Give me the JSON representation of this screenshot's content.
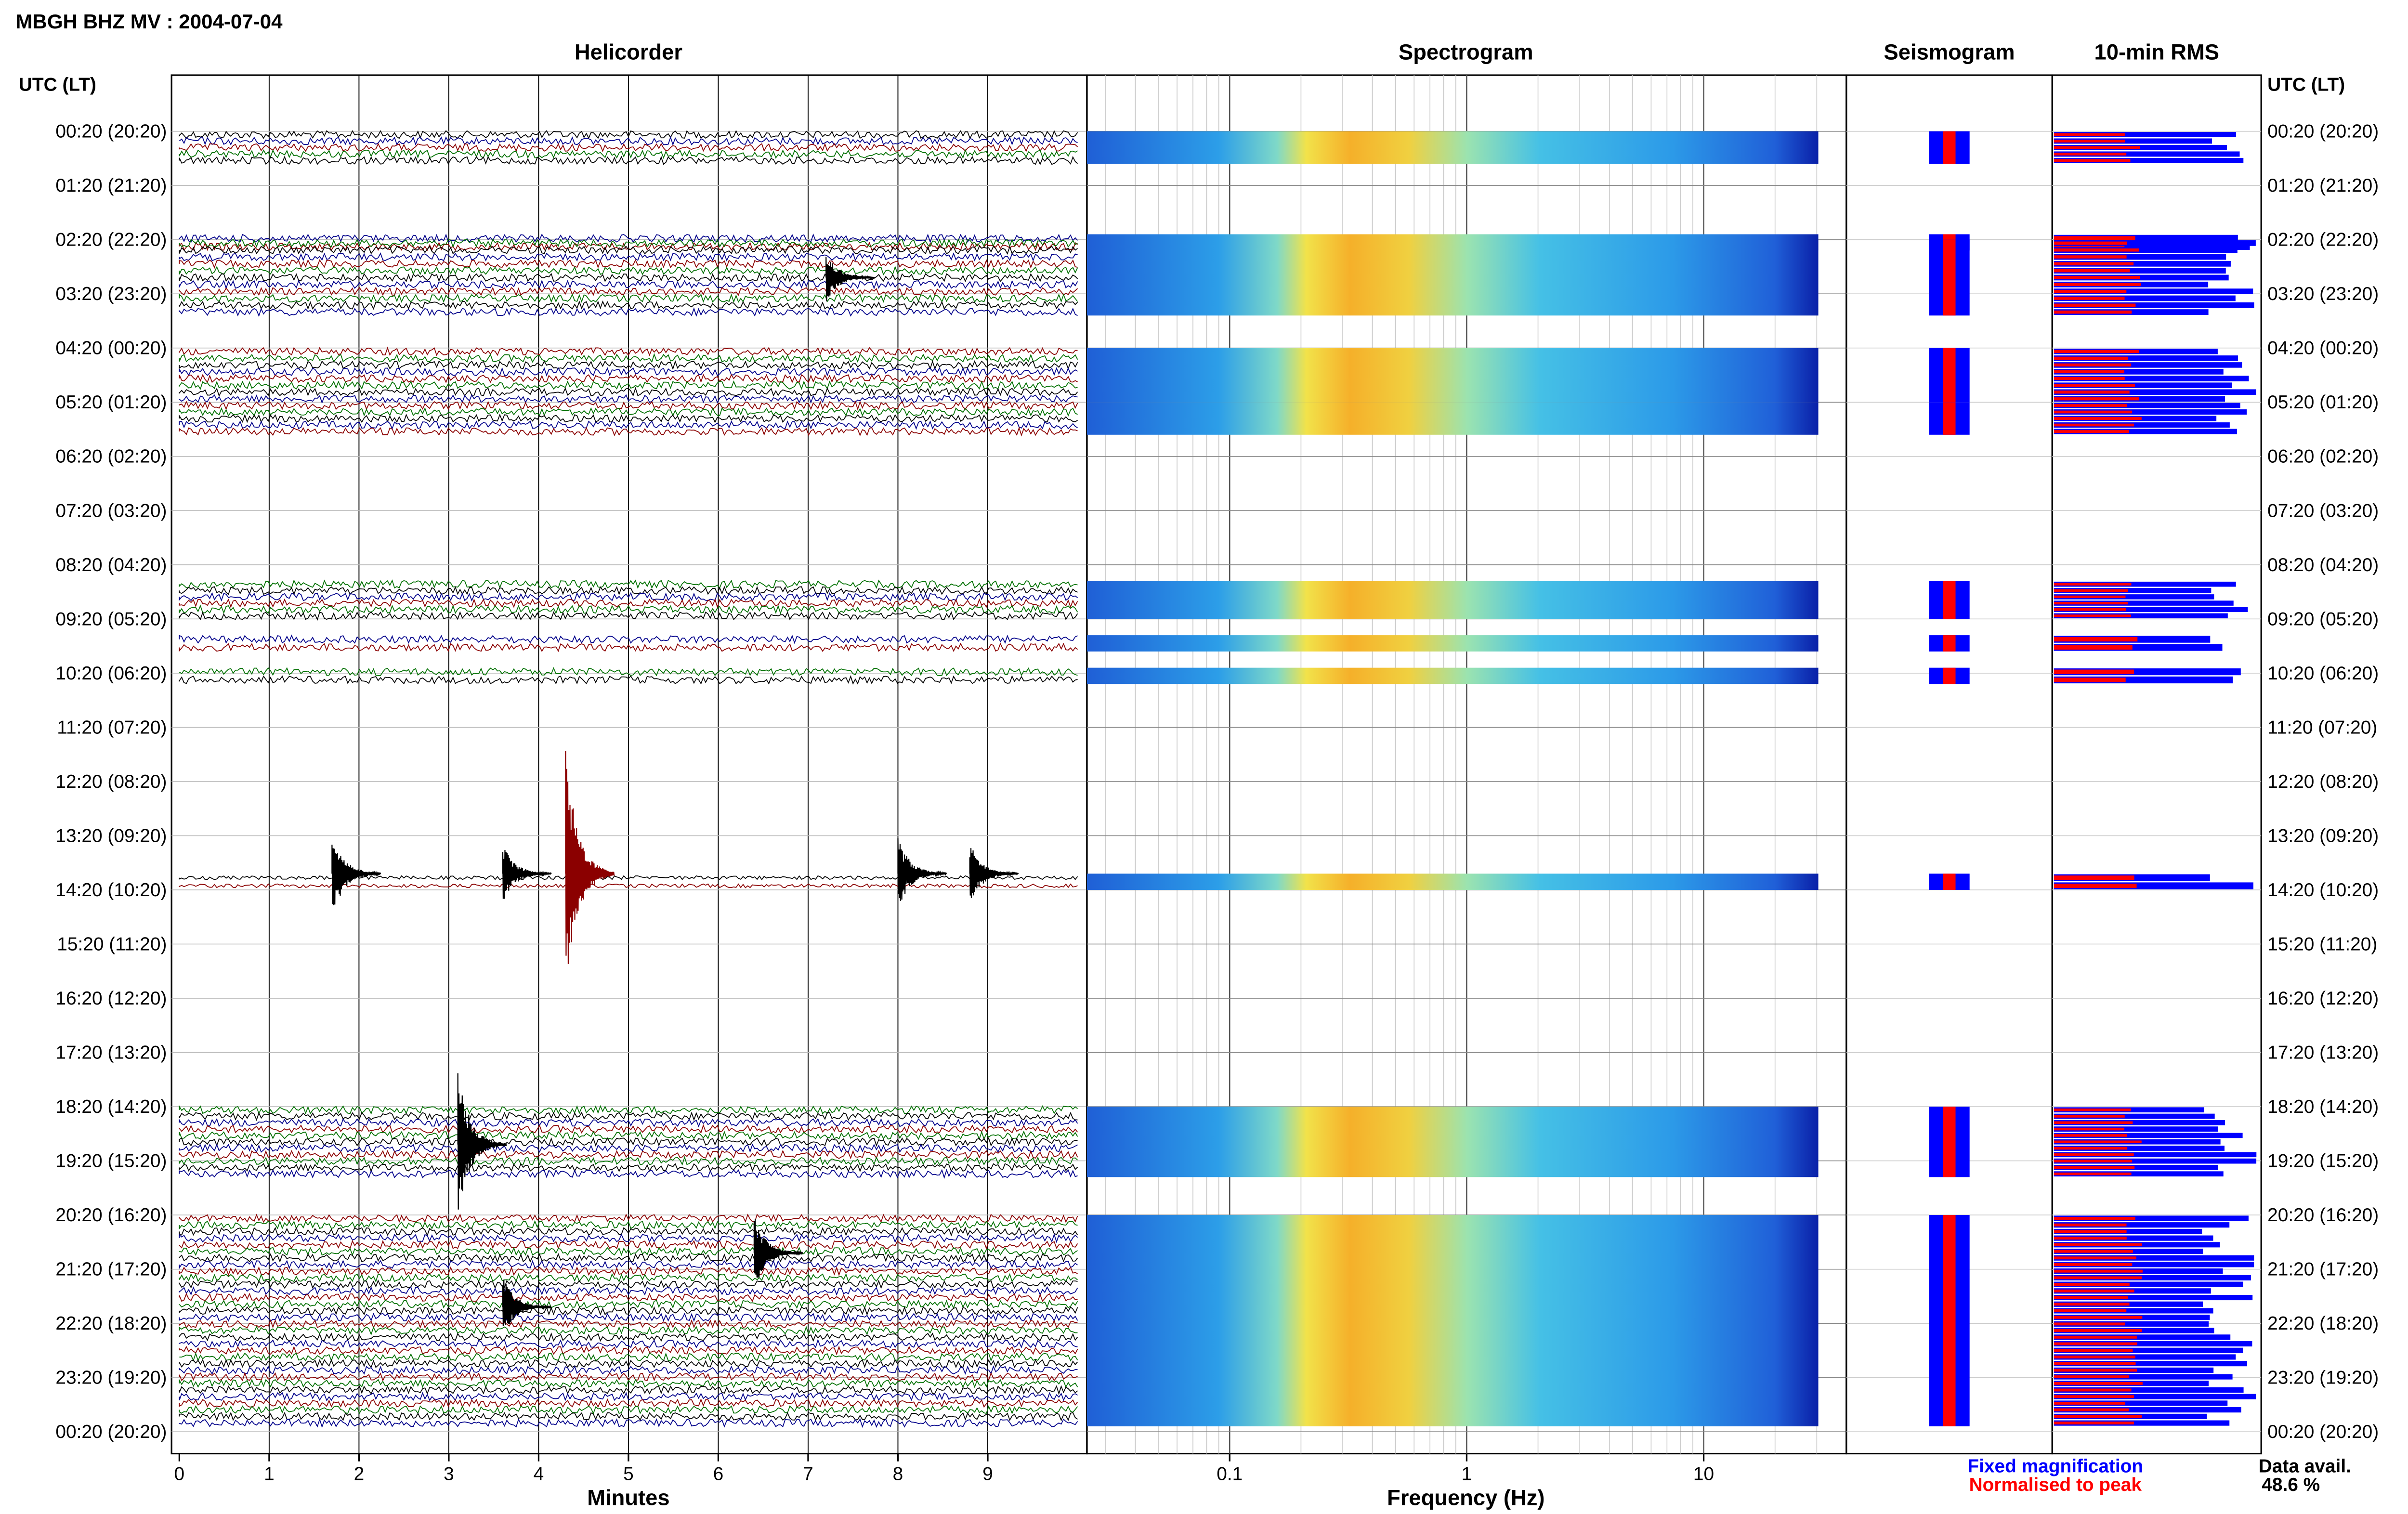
{
  "header": {
    "title": "MBGH BHZ MV : 2004-07-04"
  },
  "panels": {
    "helicorder": "Helicorder",
    "spectrogram": "Spectrogram",
    "seismogram": "Seismogram",
    "rms": "10-min RMS"
  },
  "axes": {
    "left_header": "UTC (LT)",
    "right_header": "UTC (LT)",
    "minutes_label": "Minutes",
    "frequency_label": "Frequency (Hz)",
    "minute_ticks": [
      "0",
      "1",
      "2",
      "3",
      "4",
      "5",
      "6",
      "7",
      "8",
      "9"
    ],
    "frequency_ticks": [
      "0.1",
      "1",
      "10"
    ]
  },
  "hours": [
    "00:20 (20:20)",
    "01:20 (21:20)",
    "02:20 (22:20)",
    "03:20 (23:20)",
    "04:20 (00:20)",
    "05:20 (01:20)",
    "06:20 (02:20)",
    "07:20 (03:20)",
    "08:20 (04:20)",
    "09:20 (05:20)",
    "10:20 (06:20)",
    "11:20 (07:20)",
    "12:20 (08:20)",
    "13:20 (09:20)",
    "14:20 (10:20)",
    "15:20 (11:20)",
    "16:20 (12:20)",
    "17:20 (13:20)",
    "18:20 (14:20)",
    "19:20 (15:20)",
    "20:20 (16:20)",
    "21:20 (17:20)",
    "22:20 (18:20)",
    "23:20 (19:20)",
    "00:20 (20:20)"
  ],
  "legend": {
    "fixed": "Fixed magnification",
    "normalised": "Normalised to peak",
    "fixed_color": "#0000ff",
    "normalised_color": "#ff0000"
  },
  "availability": {
    "label": "Data avail.",
    "value": "48.6 %"
  },
  "chart_data": {
    "type": "helicorder",
    "title": "MBGH BHZ MV : 2004-07-04",
    "xlabel": "Minutes",
    "xlim": [
      0,
      10
    ],
    "spectrogram_xlabel": "Frequency (Hz)",
    "spectrogram_xlim": [
      0.025,
      40
    ],
    "spectrogram_scale": "log",
    "trace_colors": [
      "#000000",
      "#00008b",
      "#8b0000",
      "#007000"
    ],
    "segments": [
      {
        "hour_index": 0,
        "start": 0.0,
        "end": 0.6
      },
      {
        "hour_index": 1,
        "start": 0.9,
        "end": 1.2
      },
      {
        "hour_index": 2,
        "start": 0.0,
        "end": 1.4
      },
      {
        "hour_index": 4,
        "start": 0.0,
        "end": 1.0
      },
      {
        "hour_index": 5,
        "start": 0.0,
        "end": 0.6
      },
      {
        "hour_index": 8,
        "start": 0.3,
        "end": 1.0
      },
      {
        "hour_index": 9,
        "start": 0.3,
        "end": 0.6
      },
      {
        "hour_index": 9,
        "start": 0.9,
        "end": 1.2
      },
      {
        "hour_index": 13,
        "start": 0.7,
        "end": 1.0
      },
      {
        "hour_index": 18,
        "start": 0.0,
        "end": 1.3
      },
      {
        "hour_index": 20,
        "start": 0.0,
        "end": 3.9
      }
    ],
    "events": [
      {
        "hour_index": 13,
        "minute": 4.3,
        "amplitude": 1.0
      },
      {
        "hour_index": 13,
        "minute": 1.7,
        "amplitude": 0.35
      },
      {
        "hour_index": 13,
        "minute": 8.0,
        "amplitude": 0.3
      },
      {
        "hour_index": 13,
        "minute": 3.6,
        "amplitude": 0.25
      },
      {
        "hour_index": 13,
        "minute": 8.8,
        "amplitude": 0.25
      },
      {
        "hour_index": 18,
        "minute": 3.1,
        "amplitude": 0.6
      },
      {
        "hour_index": 20,
        "minute": 6.4,
        "amplitude": 0.3
      },
      {
        "hour_index": 21,
        "minute": 3.6,
        "amplitude": 0.25
      },
      {
        "hour_index": 2,
        "minute": 7.2,
        "amplitude": 0.2
      }
    ]
  }
}
